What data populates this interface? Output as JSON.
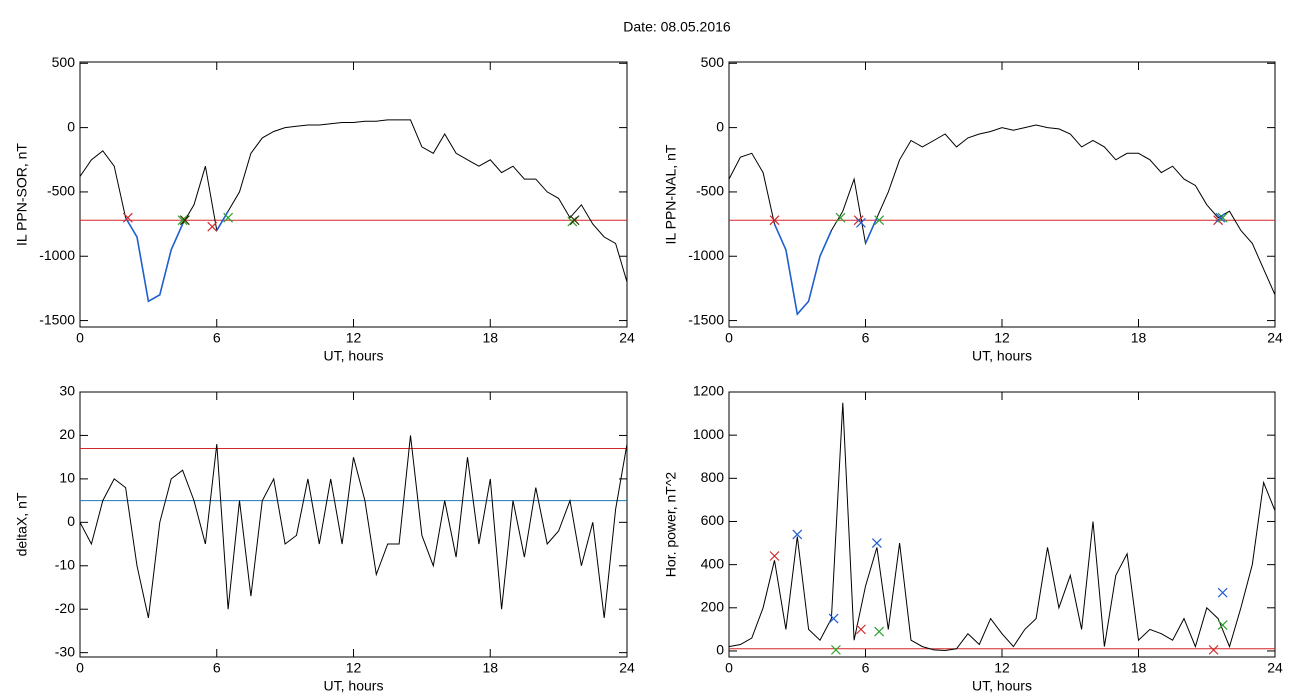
{
  "title": "Date:  08.05.2016",
  "chart_data": [
    {
      "type": "line",
      "xlabel": "UT, hours",
      "ylabel": "IL PPN-SOR, nT",
      "xlim": [
        0,
        24
      ],
      "xticks": [
        0,
        6,
        12,
        18,
        24
      ],
      "ylim": [
        -1550,
        510
      ],
      "yticks": [
        -1500,
        -1000,
        -500,
        0,
        500
      ],
      "x": [
        0,
        0.5,
        1,
        1.5,
        2,
        2.5,
        3,
        3.5,
        4,
        4.5,
        5,
        5.5,
        6,
        6.5,
        7,
        7.5,
        8,
        8.5,
        9,
        9.5,
        10,
        10.5,
        11,
        11.5,
        12,
        12.5,
        13,
        13.5,
        14,
        14.5,
        15,
        15.5,
        16,
        16.5,
        17,
        17.5,
        18,
        18.5,
        19,
        19.5,
        20,
        20.5,
        21,
        21.5,
        22,
        22.5,
        23,
        23.5,
        24
      ],
      "series": [
        {
          "color": "#000000",
          "values": [
            -380,
            -250,
            -180,
            -300,
            -700,
            -850,
            -1350,
            -1300,
            -950,
            -750,
            -600,
            -300,
            -800,
            -650,
            -500,
            -200,
            -80,
            -30,
            0,
            10,
            20,
            20,
            30,
            40,
            40,
            50,
            50,
            60,
            60,
            60,
            -150,
            -200,
            -50,
            -200,
            -250,
            -300,
            -250,
            -350,
            -300,
            -400,
            -400,
            -500,
            -550,
            -700,
            -600,
            -750,
            -850,
            -900,
            -1200
          ]
        },
        {
          "color": "#1f5fcf",
          "values": [
            null,
            null,
            null,
            null,
            -700,
            -850,
            -1350,
            -1300,
            -950,
            -750,
            null,
            null,
            -800,
            -650,
            null,
            null,
            null,
            null,
            null,
            null,
            null,
            null,
            null,
            null,
            null,
            null,
            null,
            null,
            null,
            null,
            null,
            null,
            null,
            null,
            null,
            null,
            null,
            null,
            null,
            null,
            null,
            null,
            null,
            null,
            null,
            null,
            null,
            null,
            null
          ]
        }
      ],
      "hlines": [
        {
          "value": -720,
          "color": "#d62728"
        }
      ],
      "markers": [
        {
          "color": "#d62728",
          "x": [
            2.1,
            5.8
          ],
          "values": [
            -700,
            -770
          ]
        },
        {
          "color": "#2ca02c",
          "x": [
            4.5,
            6.5,
            21.6
          ],
          "values": [
            -720,
            -700,
            -730
          ]
        },
        {
          "color": "#333300",
          "x": [
            4.6,
            21.7
          ],
          "values": [
            -720,
            -720
          ]
        }
      ]
    },
    {
      "type": "line",
      "xlabel": "UT, hours",
      "ylabel": "IL PPN-NAL, nT",
      "xlim": [
        0,
        24
      ],
      "xticks": [
        0,
        6,
        12,
        18,
        24
      ],
      "ylim": [
        -1550,
        510
      ],
      "yticks": [
        -1500,
        -1000,
        -500,
        0,
        500
      ],
      "x": [
        0,
        0.5,
        1,
        1.5,
        2,
        2.5,
        3,
        3.5,
        4,
        4.5,
        5,
        5.5,
        6,
        6.5,
        7,
        7.5,
        8,
        8.5,
        9,
        9.5,
        10,
        10.5,
        11,
        11.5,
        12,
        12.5,
        13,
        13.5,
        14,
        14.5,
        15,
        15.5,
        16,
        16.5,
        17,
        17.5,
        18,
        18.5,
        19,
        19.5,
        20,
        20.5,
        21,
        21.5,
        22,
        22.5,
        23,
        23.5,
        24
      ],
      "series": [
        {
          "color": "#000000",
          "values": [
            -400,
            -230,
            -200,
            -350,
            -750,
            -950,
            -1450,
            -1350,
            -1000,
            -800,
            -650,
            -400,
            -900,
            -700,
            -500,
            -250,
            -100,
            -150,
            -100,
            -50,
            -150,
            -80,
            -50,
            -30,
            0,
            -20,
            0,
            20,
            0,
            -10,
            -50,
            -150,
            -100,
            -150,
            -250,
            -200,
            -200,
            -250,
            -350,
            -300,
            -400,
            -450,
            -600,
            -700,
            -650,
            -800,
            -900,
            -1100,
            -1300
          ]
        },
        {
          "color": "#1f5fcf",
          "values": [
            null,
            null,
            null,
            null,
            -750,
            -950,
            -1450,
            -1350,
            -1000,
            -800,
            null,
            null,
            -900,
            -700,
            null,
            null,
            null,
            null,
            null,
            null,
            null,
            null,
            null,
            null,
            null,
            null,
            null,
            null,
            null,
            null,
            null,
            null,
            null,
            null,
            null,
            null,
            null,
            null,
            null,
            null,
            null,
            null,
            null,
            null,
            null,
            null,
            null,
            null,
            null
          ]
        }
      ],
      "hlines": [
        {
          "value": -720,
          "color": "#d62728"
        }
      ],
      "markers": [
        {
          "color": "#d62728",
          "x": [
            2,
            5.7,
            21.5
          ],
          "values": [
            -720,
            -720,
            -720
          ]
        },
        {
          "color": "#2ca02c",
          "x": [
            4.9,
            6.6,
            21.7
          ],
          "values": [
            -700,
            -720,
            -700
          ]
        },
        {
          "color": "#1f5fcf",
          "x": [
            5.8,
            21.6
          ],
          "values": [
            -740,
            -700
          ]
        }
      ]
    },
    {
      "type": "line",
      "xlabel": "UT, hours",
      "ylabel": "deltaX, nT",
      "xlim": [
        0,
        24
      ],
      "xticks": [
        0,
        6,
        12,
        18,
        24
      ],
      "ylim": [
        -31,
        30
      ],
      "yticks": [
        -30,
        -20,
        -10,
        0,
        10,
        20,
        30
      ],
      "x": [
        0,
        0.5,
        1,
        1.5,
        2,
        2.5,
        3,
        3.5,
        4,
        4.5,
        5,
        5.5,
        6,
        6.5,
        7,
        7.5,
        8,
        8.5,
        9,
        9.5,
        10,
        10.5,
        11,
        11.5,
        12,
        12.5,
        13,
        13.5,
        14,
        14.5,
        15,
        15.5,
        16,
        16.5,
        17,
        17.5,
        18,
        18.5,
        19,
        19.5,
        20,
        20.5,
        21,
        21.5,
        22,
        22.5,
        23,
        23.5,
        24
      ],
      "series": [
        {
          "color": "#000000",
          "values": [
            0,
            -5,
            5,
            10,
            8,
            -10,
            -22,
            0,
            10,
            12,
            5,
            -5,
            18,
            -20,
            5,
            -17,
            5,
            10,
            -5,
            -3,
            10,
            -5,
            10,
            -5,
            15,
            5,
            -12,
            -5,
            -5,
            20,
            -3,
            -10,
            5,
            -8,
            15,
            -5,
            10,
            -20,
            5,
            -8,
            8,
            -5,
            -2,
            5,
            -10,
            0,
            -22,
            3,
            18
          ]
        }
      ],
      "hlines": [
        {
          "value": 17,
          "color": "#d62728"
        },
        {
          "value": 5,
          "color": "#1f77b4"
        }
      ],
      "markers": []
    },
    {
      "type": "line",
      "xlabel": "UT, hours",
      "ylabel": "Hor. power, nT^2",
      "xlim": [
        0,
        24
      ],
      "xticks": [
        0,
        6,
        12,
        18,
        24
      ],
      "ylim": [
        -28,
        1200
      ],
      "yticks": [
        0,
        200,
        400,
        600,
        800,
        1000,
        1200
      ],
      "x": [
        0,
        0.5,
        1,
        1.5,
        2,
        2.5,
        3,
        3.5,
        4,
        4.5,
        5,
        5.5,
        6,
        6.5,
        7,
        7.5,
        8,
        8.5,
        9,
        9.5,
        10,
        10.5,
        11,
        11.5,
        12,
        12.5,
        13,
        13.5,
        14,
        14.5,
        15,
        15.5,
        16,
        16.5,
        17,
        17.5,
        18,
        18.5,
        19,
        19.5,
        20,
        20.5,
        21,
        21.5,
        22,
        22.5,
        23,
        23.5,
        24
      ],
      "series": [
        {
          "color": "#000000",
          "values": [
            20,
            30,
            60,
            200,
            420,
            100,
            530,
            100,
            50,
            150,
            1150,
            50,
            300,
            480,
            100,
            500,
            50,
            20,
            5,
            2,
            10,
            80,
            30,
            150,
            80,
            20,
            100,
            150,
            480,
            200,
            350,
            100,
            600,
            20,
            350,
            450,
            50,
            100,
            80,
            50,
            150,
            20,
            200,
            150,
            20,
            200,
            400,
            780,
            650
          ]
        }
      ],
      "hlines": [
        {
          "value": 10,
          "color": "#d62728"
        }
      ],
      "markers": [
        {
          "color": "#1f5fcf",
          "x": [
            3,
            4.6,
            6.5,
            21.7
          ],
          "values": [
            540,
            150,
            500,
            270
          ]
        },
        {
          "color": "#d62728",
          "x": [
            2,
            5.8,
            21.3
          ],
          "values": [
            440,
            100,
            5
          ]
        },
        {
          "color": "#2ca02c",
          "x": [
            4.7,
            6.6,
            21.7
          ],
          "values": [
            5,
            90,
            120
          ]
        }
      ]
    }
  ]
}
